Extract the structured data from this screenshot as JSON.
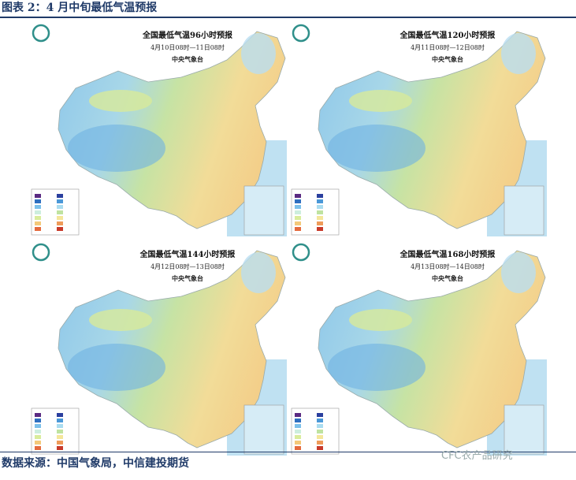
{
  "header": {
    "title": "图表 2：4 月中旬最低气温预报"
  },
  "panels": [
    {
      "title": "全国最低气温96小时预报",
      "period": "4月10日08时—11日08时",
      "issuer": "中央气象台"
    },
    {
      "title": "全国最低气温120小时预报",
      "period": "4月11日08时—12日08时",
      "issuer": "中央气象台"
    },
    {
      "title": "全国最低气温144小时预报",
      "period": "4月12日08时—13日08时",
      "issuer": "中央气象台"
    },
    {
      "title": "全国最低气温168小时预报",
      "period": "4月13日08时—14日08时",
      "issuer": "中央气象台"
    }
  ],
  "footer": {
    "source": "数据来源：中国气象局，中信建投期货",
    "watermark": "CFC农产品研究"
  }
}
